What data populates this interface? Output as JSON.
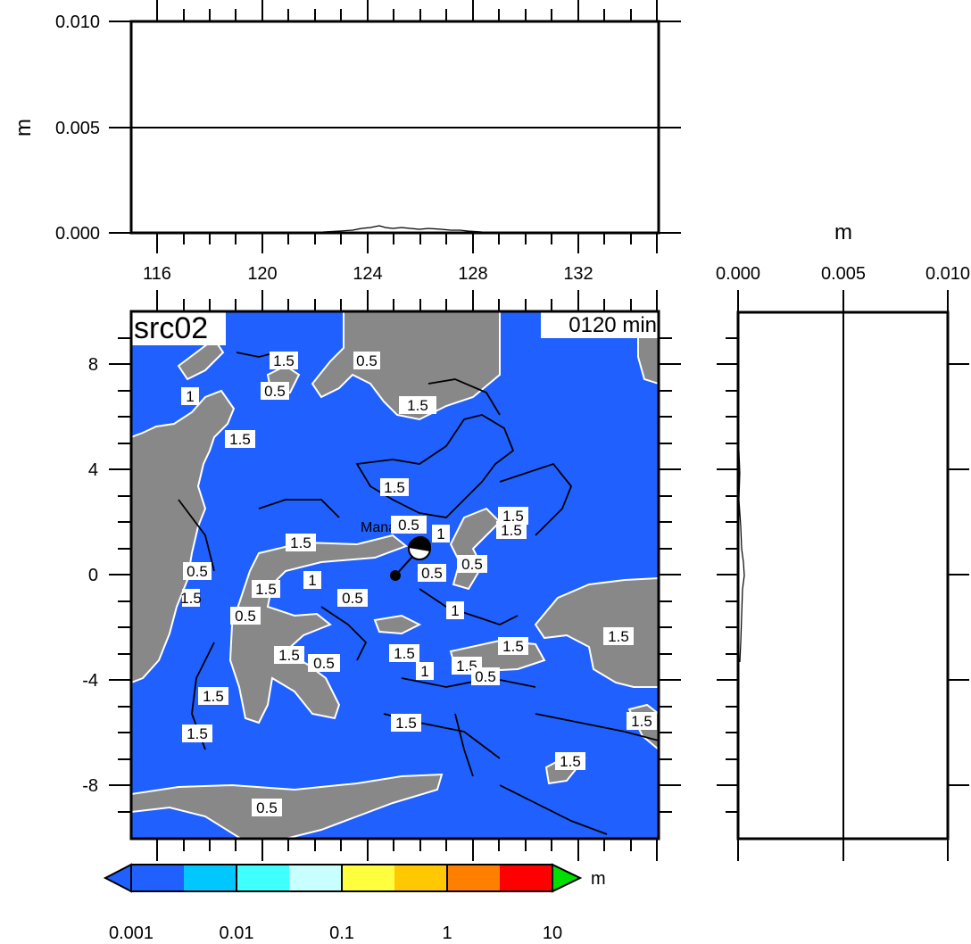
{
  "top_panel": {
    "y_unit": "m",
    "y_ticks": [
      "0.000",
      "0.005",
      "0.010"
    ],
    "x_ticks": [
      "116",
      "120",
      "124",
      "128",
      "132"
    ]
  },
  "side_panel": {
    "x_unit": "m",
    "x_ticks": [
      "0.000",
      "0.005",
      "0.010"
    ]
  },
  "map": {
    "title": "src02",
    "time_label": "0120 min",
    "y_ticks": [
      "8",
      "4",
      "0",
      "-4",
      "-8"
    ],
    "station_label": "Manado",
    "contour_labels": [
      "1.5",
      "0.5",
      "1.5",
      "0.5",
      "1",
      "1.5",
      "1.5",
      "0.5",
      "1.5",
      "0.5",
      "1.5",
      "1",
      "1.5",
      "1.5",
      "0.5",
      "1",
      "0.5",
      "0.5",
      "1.5",
      "0.5",
      "1",
      "0.5",
      "1.5",
      "1.5",
      "1",
      "1.5",
      "1.5",
      "0.5",
      "1.5",
      "1.5",
      "1.5",
      "1.5",
      "1.5",
      "0.5",
      "1.5"
    ],
    "colors": {
      "ocean": "#2060ff",
      "land": "#888888",
      "coast_contour": "#ffffff",
      "contour": "#000000"
    }
  },
  "colorbar": {
    "unit": "m",
    "ticks": [
      "0.001",
      "0.01",
      "0.1",
      "1",
      "10"
    ],
    "colors": [
      "#2060ff",
      "#00c8ff",
      "#40ffff",
      "#c8ffff",
      "#ffff40",
      "#ffc800",
      "#ff8000",
      "#ff2000",
      "#ff0000"
    ],
    "under_color": "#2060ff",
    "over_color": "#00e000"
  }
}
